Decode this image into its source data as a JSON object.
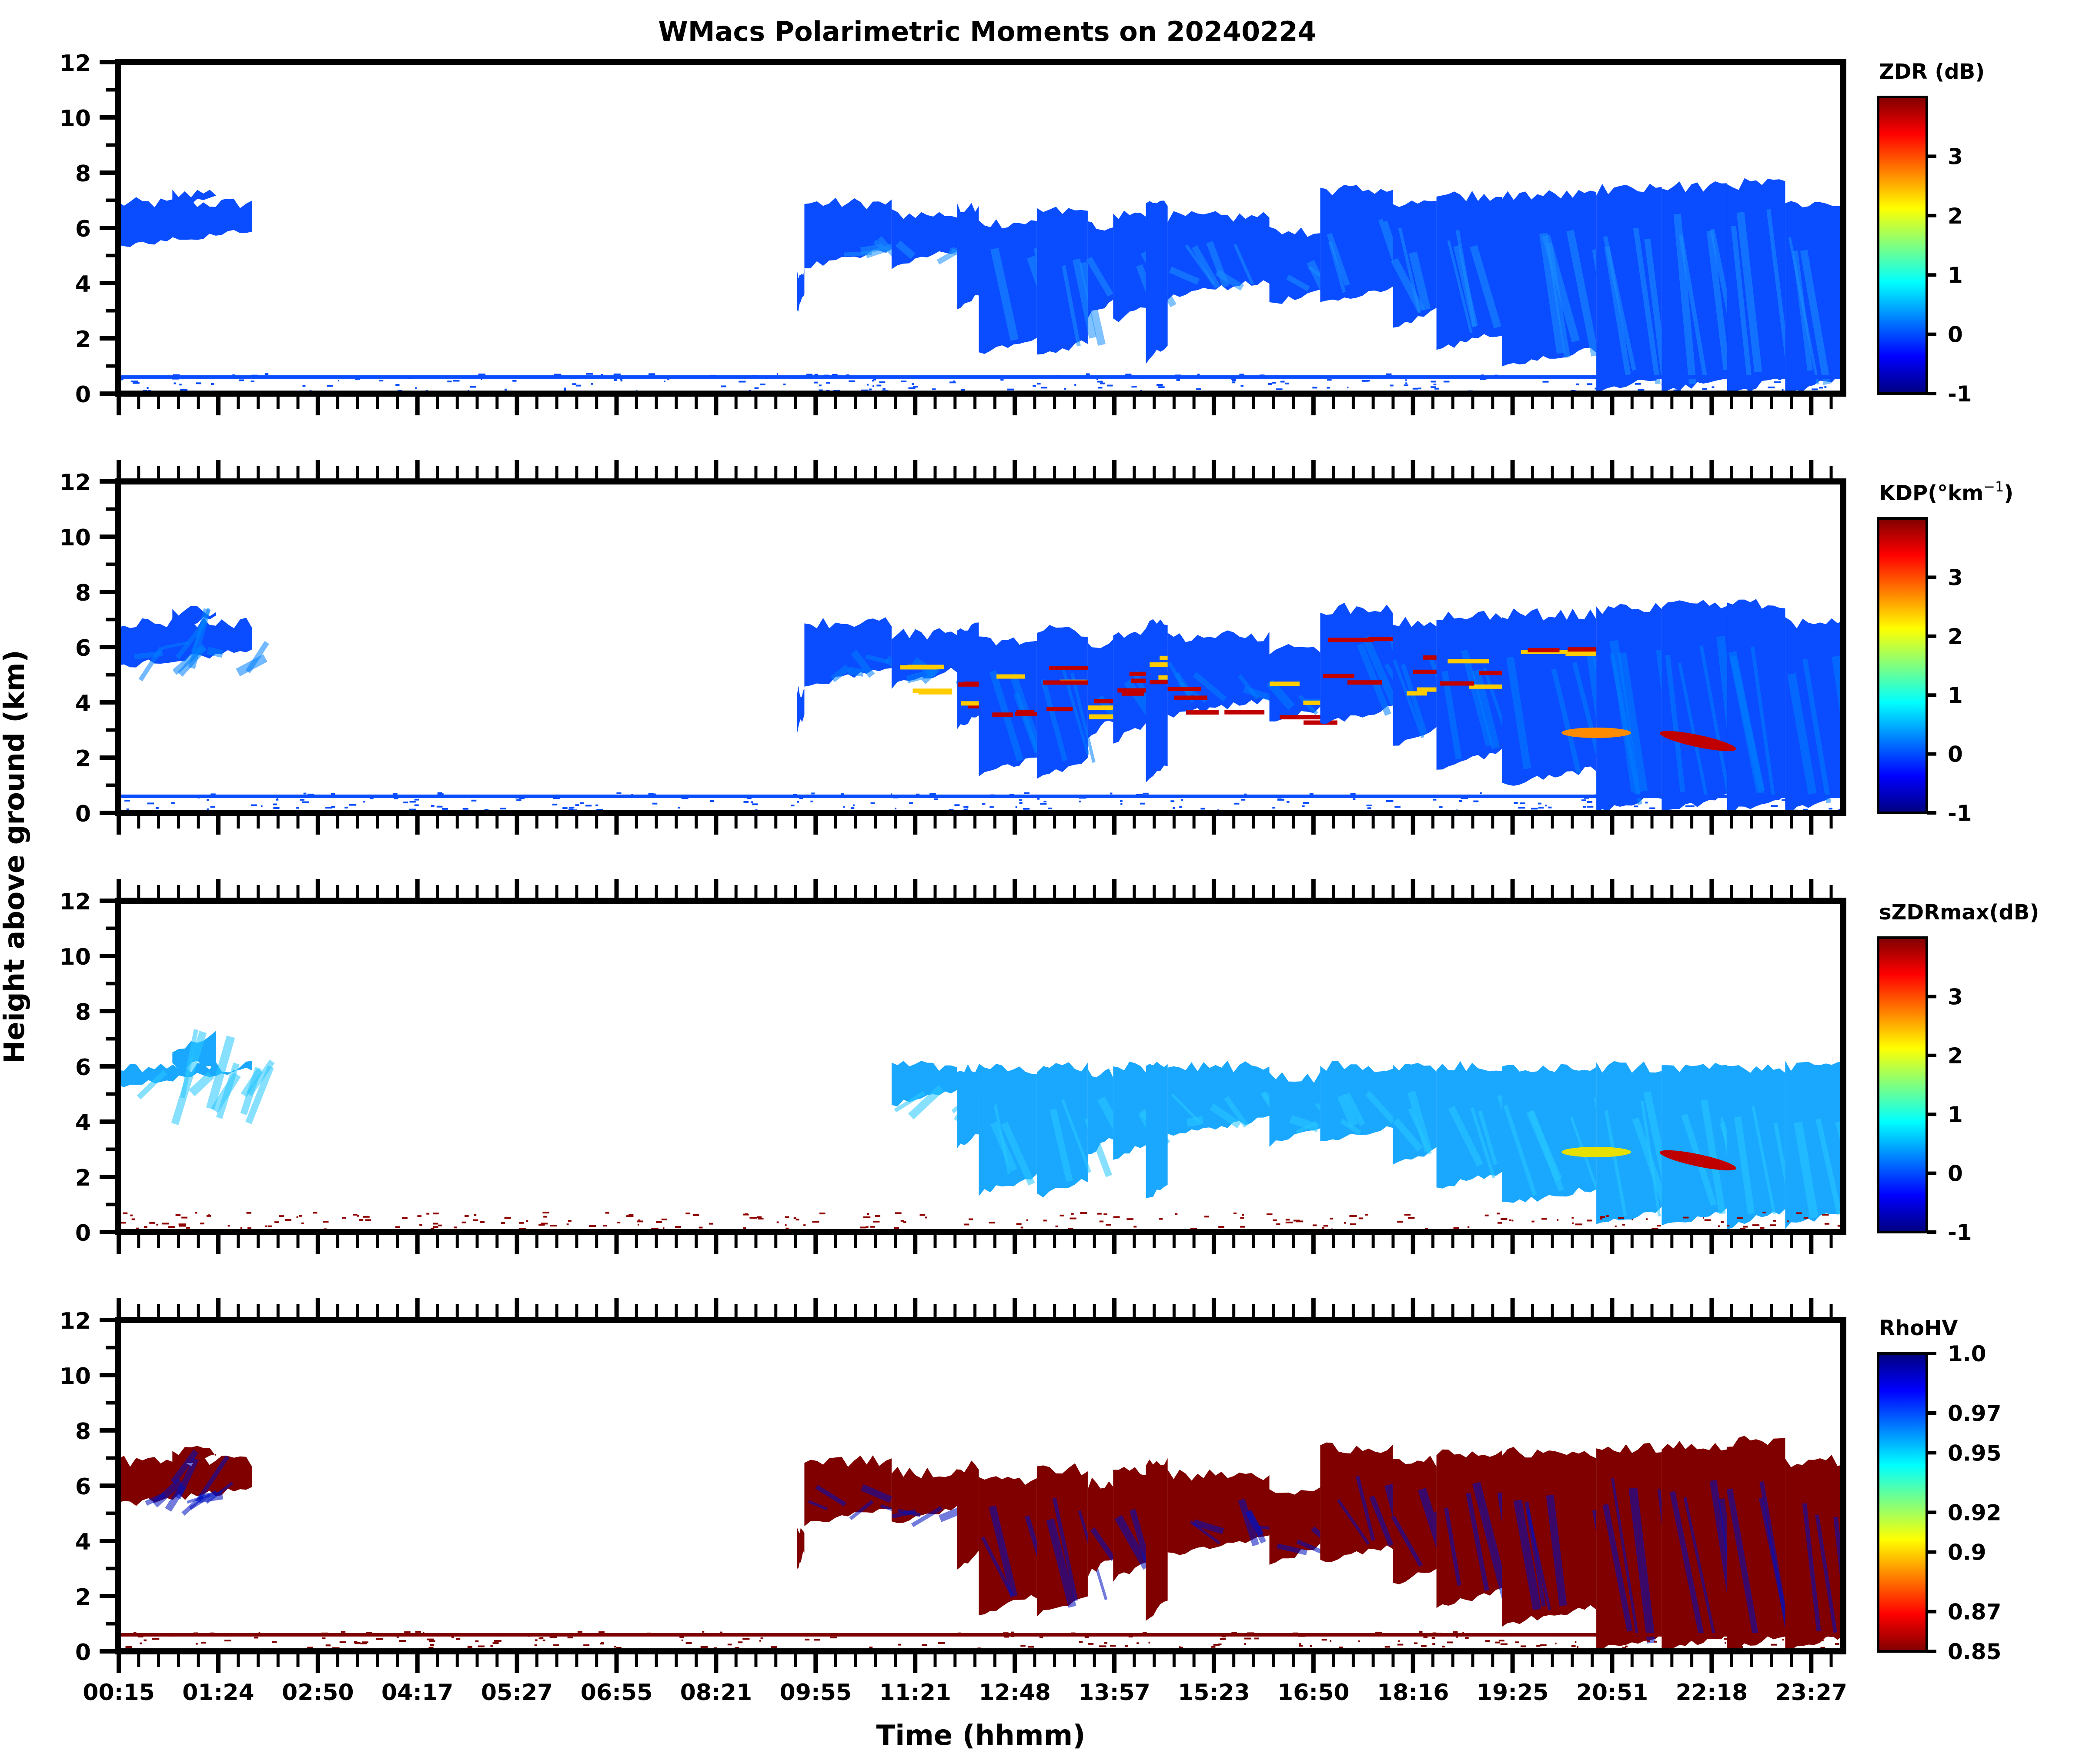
{
  "chart_data": {
    "type": "heatmap",
    "title": "WMacs Polarimetric Moments on 20240224",
    "xlabel": "Time (hhmm)",
    "ylabel": "Height above ground (km)",
    "x_tick_labels": [
      "00:15",
      "01:24",
      "02:50",
      "04:17",
      "05:27",
      "06:55",
      "08:21",
      "09:55",
      "11:21",
      "12:48",
      "13:57",
      "15:23",
      "16:50",
      "18:16",
      "19:25",
      "20:51",
      "22:18",
      "23:27"
    ],
    "y_ticks": [
      0,
      2,
      4,
      6,
      8,
      10,
      12
    ],
    "ylim": [
      0,
      12
    ],
    "x_range_hours": [
      0.25,
      24.0
    ],
    "grid": false,
    "panels": [
      {
        "name": "ZDR",
        "colorbar_label": "ZDR (dB)",
        "colorbar_ticks": [
          "3",
          "2",
          "1",
          "0",
          "-1"
        ],
        "colorbar_range": [
          -1,
          4
        ],
        "colormap": "jet",
        "reversed": false,
        "dominant_color": "#0a4cff"
      },
      {
        "name": "KDP",
        "colorbar_label": "KDP(°km",
        "colorbar_label_sup": "−1",
        "colorbar_label_end": ")",
        "colorbar_ticks": [
          "3",
          "2",
          "1",
          "0",
          "-1"
        ],
        "colorbar_range": [
          -1,
          4
        ],
        "colormap": "jet",
        "reversed": false,
        "dominant_color": "#0a4cff"
      },
      {
        "name": "sZDRmax",
        "colorbar_label": "sZDRmax(dB)",
        "colorbar_ticks": [
          "3",
          "2",
          "1",
          "0",
          "-1"
        ],
        "colorbar_range": [
          -1,
          4
        ],
        "colormap": "jet",
        "reversed": false,
        "dominant_color": "#1aa8ff"
      },
      {
        "name": "RhoHV",
        "colorbar_label": "RhoHV",
        "colorbar_ticks": [
          "1.0",
          "0.97",
          "0.95",
          "0.92",
          "0.9",
          "0.87",
          "0.85"
        ],
        "colorbar_range": [
          0.85,
          1.0
        ],
        "colormap": "jet_r",
        "reversed": true,
        "dominant_color": "#800000"
      }
    ],
    "jet_stops": [
      "#00007f",
      "#0000ff",
      "#007fff",
      "#00ffff",
      "#7fff7f",
      "#ffff00",
      "#ff7f00",
      "#ff0000",
      "#7f0000"
    ]
  }
}
